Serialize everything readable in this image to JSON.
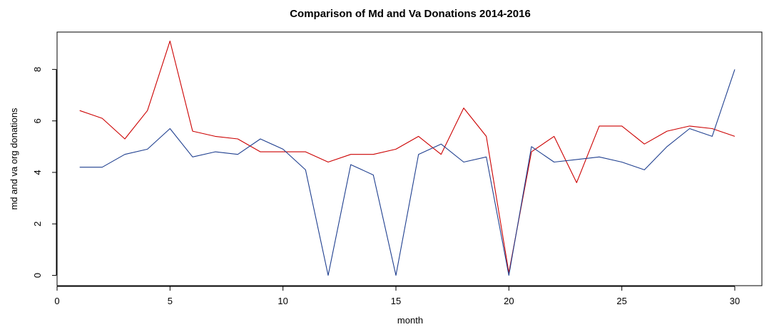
{
  "chart_data": {
    "type": "line",
    "title": "Comparison of Md and Va Donations 2014-2016",
    "xlabel": "month",
    "ylabel": "md and va org donations",
    "xlim": [
      0,
      31.2
    ],
    "ylim": [
      -0.4,
      9.45
    ],
    "xticks": [
      0,
      5,
      10,
      15,
      20,
      25,
      30
    ],
    "yticks": [
      0,
      2,
      4,
      6,
      8
    ],
    "grid": false,
    "legend": "none",
    "x": [
      1,
      2,
      3,
      4,
      5,
      6,
      7,
      8,
      9,
      10,
      11,
      12,
      13,
      14,
      15,
      16,
      17,
      18,
      19,
      20,
      21,
      22,
      23,
      24,
      25,
      26,
      27,
      28,
      29,
      30
    ],
    "series": [
      {
        "color": "#cc0000",
        "values": [
          6.4,
          6.1,
          5.3,
          6.4,
          9.1,
          5.6,
          5.4,
          5.3,
          4.8,
          4.8,
          4.8,
          4.4,
          4.7,
          4.7,
          4.9,
          5.4,
          4.7,
          6.5,
          5.4,
          0.1,
          4.8,
          5.4,
          3.6,
          5.8,
          5.8,
          5.1,
          5.6,
          5.8,
          5.7,
          5.4
        ]
      },
      {
        "color": "#1f3f8f",
        "values": [
          4.2,
          4.2,
          4.7,
          4.9,
          5.7,
          4.6,
          4.8,
          4.7,
          5.3,
          4.9,
          4.1,
          0.0,
          4.3,
          3.9,
          0.0,
          4.7,
          5.1,
          4.4,
          4.6,
          0.0,
          5.0,
          4.4,
          4.5,
          4.6,
          4.4,
          4.1,
          5.0,
          5.7,
          5.4,
          8.0
        ]
      }
    ]
  }
}
